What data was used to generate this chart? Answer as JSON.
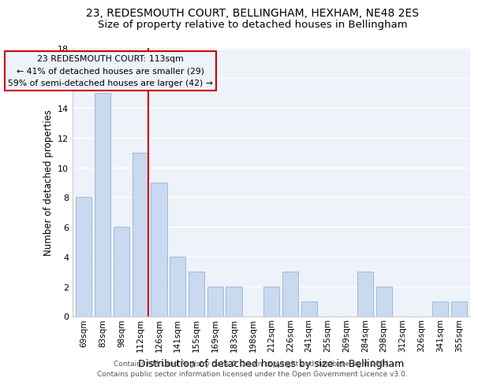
{
  "title": "23, REDESMOUTH COURT, BELLINGHAM, HEXHAM, NE48 2ES",
  "subtitle": "Size of property relative to detached houses in Bellingham",
  "xlabel": "Distribution of detached houses by size in Bellingham",
  "ylabel": "Number of detached properties",
  "footer_line1": "Contains HM Land Registry data © Crown copyright and database right 2024.",
  "footer_line2": "Contains public sector information licensed under the Open Government Licence v3.0.",
  "categories": [
    "69sqm",
    "83sqm",
    "98sqm",
    "112sqm",
    "126sqm",
    "141sqm",
    "155sqm",
    "169sqm",
    "183sqm",
    "198sqm",
    "212sqm",
    "226sqm",
    "241sqm",
    "255sqm",
    "269sqm",
    "284sqm",
    "298sqm",
    "312sqm",
    "326sqm",
    "341sqm",
    "355sqm"
  ],
  "values": [
    8,
    15,
    6,
    11,
    9,
    4,
    3,
    2,
    2,
    0,
    2,
    3,
    1,
    0,
    0,
    3,
    2,
    0,
    0,
    1,
    1
  ],
  "highlight_index": 3,
  "bar_color": "#c8d9f0",
  "bar_edge_color": "#a0b8d8",
  "highlight_line_color": "#cc0000",
  "annotation_box_edge_color": "#cc0000",
  "annotation_title": "23 REDESMOUTH COURT: 113sqm",
  "annotation_line1": "← 41% of detached houses are smaller (29)",
  "annotation_line2": "59% of semi-detached houses are larger (42) →",
  "ylim": [
    0,
    18
  ],
  "yticks": [
    0,
    2,
    4,
    6,
    8,
    10,
    12,
    14,
    16,
    18
  ],
  "bg_color": "#eef2f9",
  "plot_bg_color": "#eef2f9",
  "grid_color": "#ffffff",
  "title_fontsize": 10,
  "subtitle_fontsize": 9.5,
  "title_color": "#000000",
  "footer_color": "#555555"
}
